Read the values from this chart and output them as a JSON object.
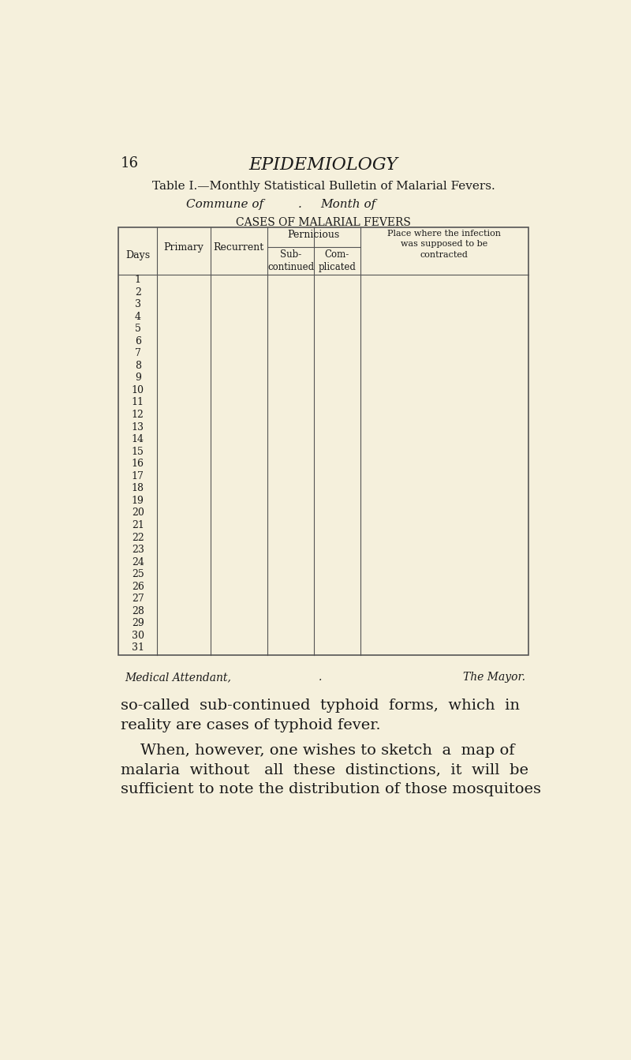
{
  "page_num": "16",
  "page_header": "EPIDEMIOLOGY",
  "table_title": "Table I.—Monthly Statistical Bulletin of Malarial Fevers.",
  "subtitle_left": "Commune of",
  "subtitle_dot": ".",
  "subtitle_right": "Month of",
  "cases_header": "CASES OF MALARIAL FEVERS",
  "col_headers": {
    "days": "Days",
    "primary": "Primary",
    "recurrent": "Recurrent",
    "pernicious": "Pernicious",
    "sub_continued": "Sub-\ncontinued",
    "complicated": "Com-\nplicated",
    "place": "Place where the infection\nwas supposed to be\ncontracted"
  },
  "days": [
    1,
    2,
    3,
    4,
    5,
    6,
    7,
    8,
    9,
    10,
    11,
    12,
    13,
    14,
    15,
    16,
    17,
    18,
    19,
    20,
    21,
    22,
    23,
    24,
    25,
    26,
    27,
    28,
    29,
    30,
    31
  ],
  "footer_left": "Medical Attendant,",
  "footer_dot": ".",
  "footer_right": "The Mayor.",
  "body_text": [
    "so-called  sub-continued  typhoid  forms,  which  in",
    "reality are cases of typhoid fever.",
    "When, however, one wishes to sketch  a  map of",
    "malaria  without   all  these  distinctions,  it  will  be",
    "sufficient to note the distribution of those mosquitoes"
  ],
  "body_indent": [
    false,
    false,
    true,
    false,
    false
  ],
  "bg_color": "#f5f0dc",
  "text_color": "#1a1a1a",
  "table_line_color": "#555555"
}
